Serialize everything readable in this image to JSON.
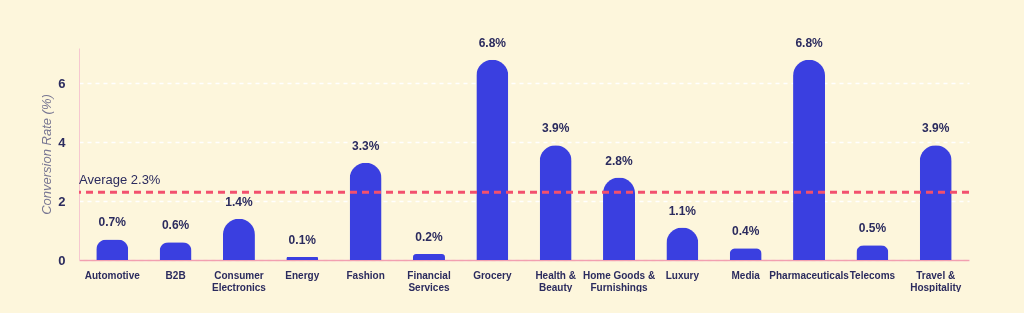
{
  "chart_data": {
    "type": "bar",
    "ylabel": "Conversion Rate (%)",
    "categories": [
      "Automotive",
      "B2B",
      "Consumer Electronics",
      "Energy",
      "Fashion",
      "Financial Services",
      "Grocery",
      "Health & Beauty",
      "Home Goods & Furnishings",
      "Luxury",
      "Media",
      "Pharmaceuticals",
      "Telecoms",
      "Travel & Hospitality"
    ],
    "values": [
      0.7,
      0.6,
      1.4,
      0.1,
      3.3,
      0.2,
      6.8,
      3.9,
      2.8,
      1.1,
      0.4,
      6.8,
      0.5,
      3.9
    ],
    "value_labels": [
      "0.7%",
      "0.6%",
      "1.4%",
      "0.1%",
      "3.3%",
      "0.2%",
      "6.8%",
      "3.9%",
      "2.8%",
      "1.1%",
      "0.4%",
      "6.8%",
      "0.5%",
      "3.9%"
    ],
    "color": "#3a3fe0",
    "ylim": [
      0,
      7.2
    ],
    "yticks": [
      0,
      2,
      4,
      6
    ],
    "grid": "y",
    "ref_lines": [
      {
        "axis": "y",
        "value": 2.3,
        "label": "Average 2.3%",
        "color": "#f2506e",
        "line_style": "dashed"
      }
    ]
  }
}
